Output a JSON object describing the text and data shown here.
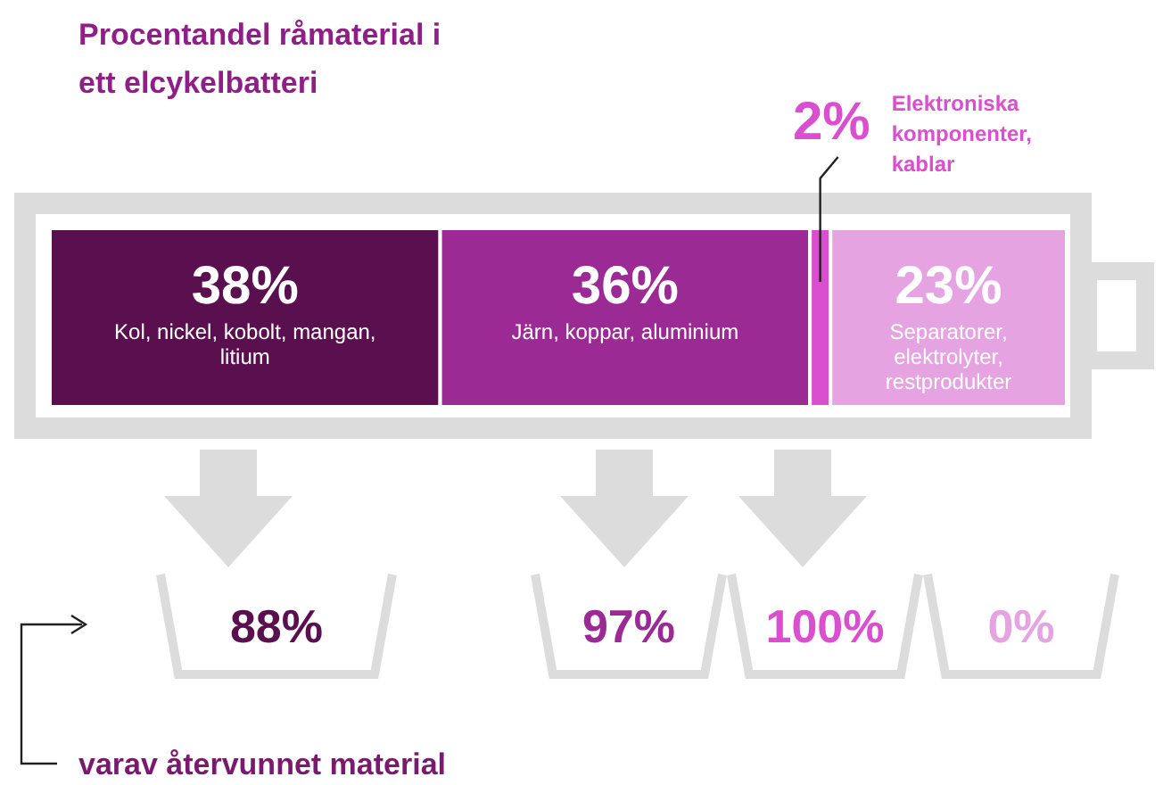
{
  "chart_data": {
    "type": "bar",
    "orientation": "horizontal",
    "stacked": true,
    "title": "Procentandel råmaterial i ett elcykelbatteri",
    "categories": [
      null
    ],
    "series": [
      {
        "name": "Kol, nickel, kobolt, mangan, litium",
        "color": "#5a0f4e",
        "values": [
          38
        ],
        "value_labels": [
          "38%"
        ]
      },
      {
        "name": "Järn, koppar, aluminium",
        "color": "#9c2a94",
        "values": [
          36
        ],
        "value_labels": [
          "36%"
        ]
      },
      {
        "name": "Elektroniska komponenter, kablar",
        "color": "#d94fd0",
        "values": [
          2
        ],
        "value_labels": [
          "2%"
        ]
      },
      {
        "name": "Separatorer, elektrolyter, restprodukter",
        "color": "#e6a3e1",
        "values": [
          23
        ],
        "value_labels": [
          "23%"
        ]
      }
    ],
    "annotations": [
      "88%",
      "97%",
      "100%",
      "0%",
      "varav återvunnet material"
    ]
  }
}
